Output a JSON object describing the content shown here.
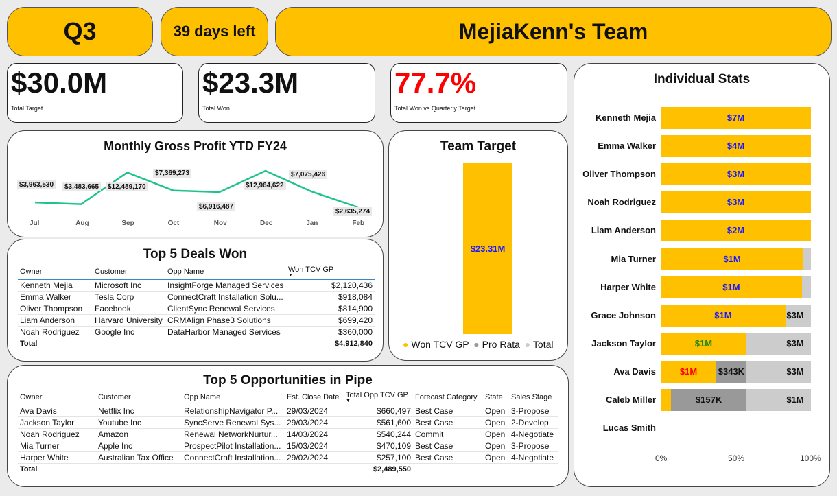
{
  "header": {
    "quarter": "Q3",
    "days_left": "39 days left",
    "team": "MejiaKenn's Team"
  },
  "kpis": [
    {
      "value": "$30.0M",
      "label": "Total Target"
    },
    {
      "value": "$23.3M",
      "label": "Total Won"
    },
    {
      "value": "77.7%",
      "label": "Total Won vs Quarterly Target",
      "color": "#ff0000"
    }
  ],
  "gross_profit": {
    "title": "Monthly Gross Profit YTD FY24",
    "chart_data": {
      "type": "line",
      "title": "Monthly Gross Profit YTD FY24",
      "categories": [
        "Jul",
        "Aug",
        "Sep",
        "Oct",
        "Nov",
        "Dec",
        "Jan",
        "Feb"
      ],
      "values": [
        3963530,
        3483665,
        12489170,
        7369273,
        6916487,
        12964622,
        7075426,
        2635274
      ],
      "labels": [
        "$3,963,530",
        "$3,483,665",
        "$12,489,170",
        "$7,369,273",
        "$6,916,487",
        "$12,964,622",
        "$7,075,426",
        "$2,635,274"
      ],
      "color": "#1ec38b"
    }
  },
  "team_target": {
    "title": "Team Target",
    "bar_label": "$23.31M",
    "legend": [
      "Won TCV GP",
      "Pro Rata",
      "Total"
    ],
    "colors": {
      "won": "#FFC000",
      "pro_rata": "#999999",
      "total": "#cccccc"
    }
  },
  "deals": {
    "title": "Top 5 Deals Won",
    "columns": [
      "Owner",
      "Customer",
      "Opp Name",
      "Won TCV GP"
    ],
    "rows": [
      [
        "Kenneth Mejia",
        "Microsoft Inc",
        "InsightForge Managed Services",
        "$2,120,436"
      ],
      [
        "Emma Walker",
        "Tesla Corp",
        "ConnectCraft Installation Solu...",
        "$918,084"
      ],
      [
        "Oliver Thompson",
        "Facebook",
        "ClientSync Renewal Services",
        "$814,900"
      ],
      [
        "Liam Anderson",
        "Harvard University",
        "CRMAlign Phase3 Solutions",
        "$699,420"
      ],
      [
        "Noah Rodriguez",
        "Google Inc",
        "DataHarbor Managed Services",
        "$360,000"
      ]
    ],
    "total_label": "Total",
    "total_value": "$4,912,840"
  },
  "pipe": {
    "title": "Top 5 Opportunities in Pipe",
    "columns": [
      "Owner",
      "Customer",
      "Opp Name",
      "Est. Close Date",
      "Total Opp TCV GP",
      "Forecast Category",
      "State",
      "Sales Stage"
    ],
    "rows": [
      [
        "Ava Davis",
        "Netflix Inc",
        "RelationshipNavigator P...",
        "29/03/2024",
        "$660,497",
        "Best Case",
        "Open",
        "3-Propose"
      ],
      [
        "Jackson Taylor",
        "Youtube Inc",
        "SyncServe Renewal Sys...",
        "29/03/2024",
        "$561,600",
        "Best Case",
        "Open",
        "2-Develop"
      ],
      [
        "Noah Rodriguez",
        "Amazon",
        "Renewal NetworkNurtur...",
        "14/03/2024",
        "$540,244",
        "Commit",
        "Open",
        "4-Negotiate"
      ],
      [
        "Mia Turner",
        "Apple Inc",
        "ProspectPilot Installation...",
        "15/03/2024",
        "$470,109",
        "Best Case",
        "Open",
        "3-Propose"
      ],
      [
        "Harper White",
        "Australian Tax Office",
        "ConnectCraft Installation...",
        "29/02/2024",
        "$257,100",
        "Best Case",
        "Open",
        "4-Negotiate"
      ]
    ],
    "total_label": "Total",
    "total_value": "$2,489,550"
  },
  "individual": {
    "title": "Individual Stats",
    "axis": [
      "0%",
      "50%",
      "100%"
    ],
    "chart_data": {
      "type": "bar",
      "orientation": "horizontal-stacked",
      "title": "Individual Stats",
      "xlim": [
        0,
        100
      ],
      "rows": [
        {
          "name": "Kenneth Mejia",
          "won_pct": 100,
          "pro_rata_pct": 0,
          "won_label": "$7M",
          "won_label_color": "#1a1aff",
          "pro_label": "",
          "total_label": ""
        },
        {
          "name": "Emma Walker",
          "won_pct": 100,
          "pro_rata_pct": 0,
          "won_label": "$4M",
          "won_label_color": "#1a1aff",
          "pro_label": "",
          "total_label": ""
        },
        {
          "name": "Oliver Thompson",
          "won_pct": 100,
          "pro_rata_pct": 0,
          "won_label": "$3M",
          "won_label_color": "#1a1aff",
          "pro_label": "",
          "total_label": ""
        },
        {
          "name": "Noah Rodriguez",
          "won_pct": 100,
          "pro_rata_pct": 0,
          "won_label": "$3M",
          "won_label_color": "#1a1aff",
          "pro_label": "",
          "total_label": ""
        },
        {
          "name": "Liam Anderson",
          "won_pct": 100,
          "pro_rata_pct": 0,
          "won_label": "$2M",
          "won_label_color": "#1a1aff",
          "pro_label": "",
          "total_label": ""
        },
        {
          "name": "Mia Turner",
          "won_pct": 95,
          "pro_rata_pct": 0,
          "won_label": "$1M",
          "won_label_color": "#1a1aff",
          "pro_label": "",
          "total_label": ""
        },
        {
          "name": "Harper White",
          "won_pct": 94,
          "pro_rata_pct": 0,
          "won_label": "$1M",
          "won_label_color": "#1a1aff",
          "pro_label": "",
          "total_label": ""
        },
        {
          "name": "Grace Johnson",
          "won_pct": 83,
          "pro_rata_pct": 0,
          "won_label": "$1M",
          "won_label_color": "#1a1aff",
          "pro_label": "",
          "total_label": "$3M"
        },
        {
          "name": "Jackson Taylor",
          "won_pct": 57,
          "pro_rata_pct": 0,
          "won_label": "$1M",
          "won_label_color": "#1a8a1a",
          "pro_label": "",
          "total_label": "$3M"
        },
        {
          "name": "Ava Davis",
          "won_pct": 37,
          "pro_rata_pct": 20,
          "won_label": "$1M",
          "won_label_color": "#ff0000",
          "pro_label": "$343K",
          "total_label": "$3M"
        },
        {
          "name": "Caleb Miller",
          "won_pct": 7,
          "pro_rata_pct": 50,
          "won_label": "",
          "won_label_color": "#1a1aff",
          "pro_label": "$157K",
          "total_label": "$1M"
        },
        {
          "name": "Lucas Smith",
          "won_pct": 0,
          "pro_rata_pct": 0,
          "won_label": "",
          "won_label_color": "#1a1aff",
          "pro_label": "",
          "total_label": "",
          "no_bar": true
        }
      ]
    }
  }
}
